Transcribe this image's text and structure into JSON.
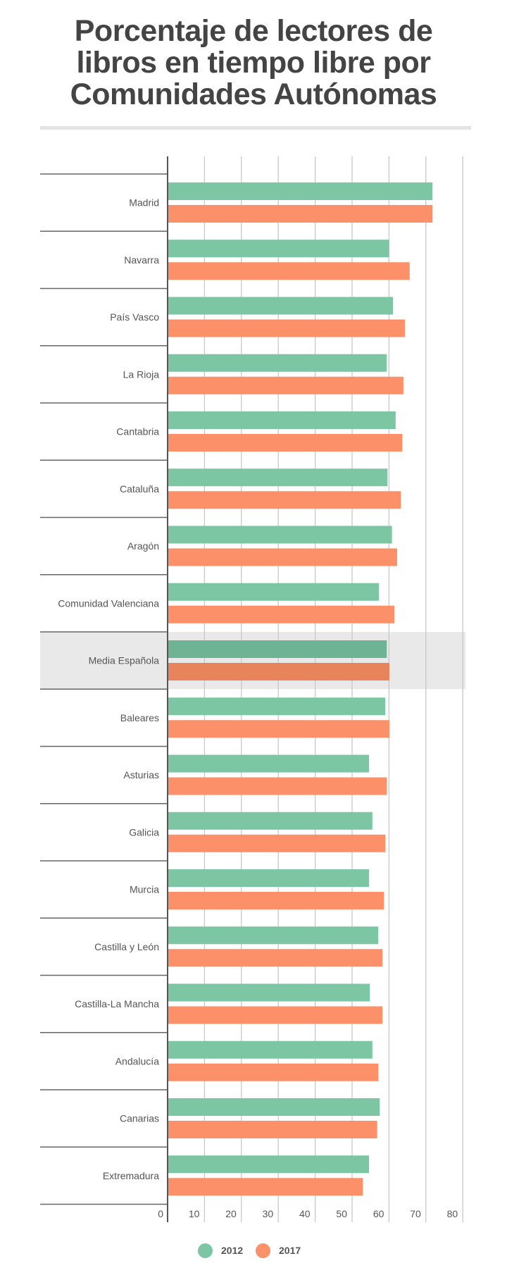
{
  "chart_data": {
    "type": "bar",
    "orientation": "horizontal",
    "title": "Porcentaje de lectores de libros en tiempo libre por Comunidades Autónomas",
    "title_lines": [
      "Porcentaje de lectores de",
      "libros en tiempo libre por",
      "Comunidades Autónomas"
    ],
    "xlabel": "",
    "ylabel": "",
    "xlim": [
      0,
      80
    ],
    "xticks": [
      0,
      10,
      20,
      30,
      40,
      50,
      60,
      70,
      80
    ],
    "grid": true,
    "legend_position": "bottom-center",
    "highlighted_category": "Media Española",
    "categories": [
      "Madrid",
      "Navarra",
      "País Vasco",
      "La Rioja",
      "Cantabria",
      "Cataluña",
      "Aragón",
      "Comunidad Valenciana",
      "Media Española",
      "Baleares",
      "Asturias",
      "Galicia",
      "Murcia",
      "Castilla y León",
      "Castilla-La Mancha",
      "Andalucía",
      "Canarias",
      "Extremadura"
    ],
    "series": [
      {
        "name": "2012",
        "color": "#7cc6a4",
        "highlight_color": "#6db394",
        "values": [
          71.8,
          60.0,
          61.1,
          59.4,
          61.8,
          59.6,
          60.8,
          57.3,
          59.4,
          59.0,
          54.6,
          55.5,
          54.6,
          57.1,
          54.8,
          55.5,
          57.5,
          54.6
        ]
      },
      {
        "name": "2017",
        "color": "#fb9069",
        "highlight_color": "#e8845c",
        "values": [
          71.8,
          65.6,
          64.3,
          63.9,
          63.6,
          63.2,
          62.2,
          61.5,
          60.1,
          60.1,
          59.4,
          59.0,
          58.6,
          58.2,
          58.2,
          57.1,
          56.8,
          52.9
        ]
      }
    ]
  },
  "colors": {
    "text": "#444444",
    "label": "#555555",
    "grid": "#c8c8c8",
    "axis": "#555555",
    "highlight_band": "#e9e9e9"
  }
}
